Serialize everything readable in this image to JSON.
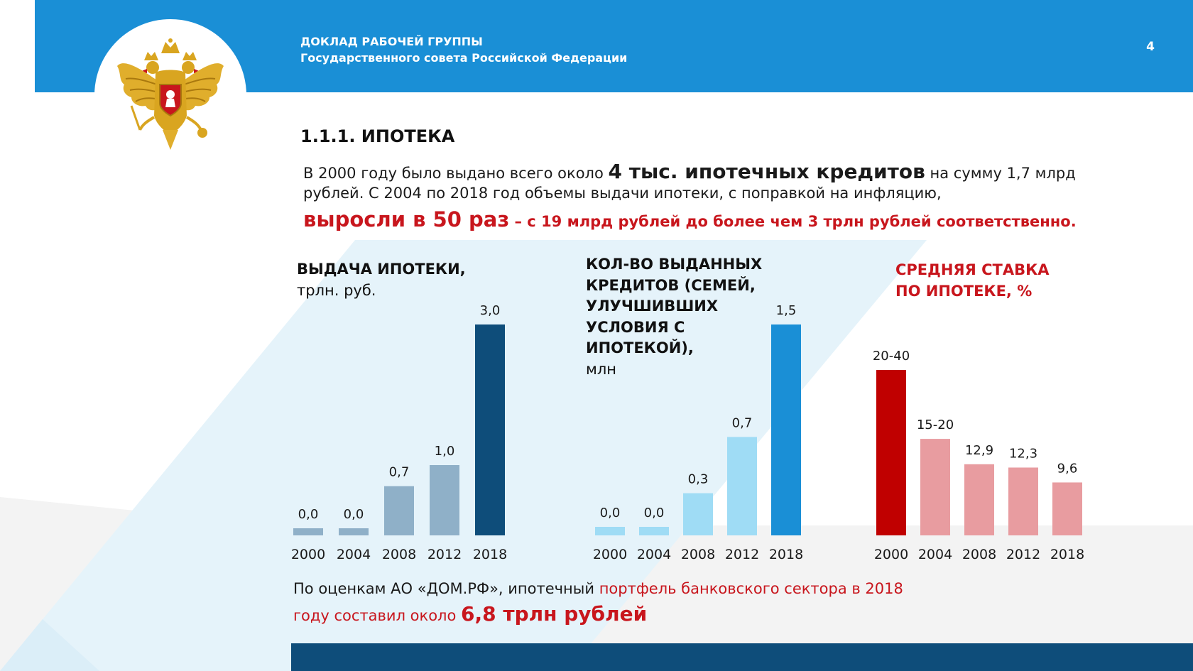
{
  "header": {
    "line1": "ДОКЛАД РАБОЧЕЙ ГРУППЫ",
    "line2": "Государственного совета Российской Федерации",
    "page_number": "4"
  },
  "section_title": "1.1.1. ИПОТЕКА",
  "intro": {
    "l1_a": "В 2000 году было выдано всего около ",
    "l1_b": "4 тыс. ипотечных кредитов",
    "l1_c": " на сумму 1,7 млрд",
    "l2": "рублей. С 2004 по 2018 год объемы выдачи ипотеки, с поправкой на инфляцию,",
    "l3_a": "выросли в 50 раз",
    "l3_b": " – с 19 млрд рублей до более чем 3 трлн рублей соответственно."
  },
  "chart_titles": {
    "c1_a": "ВЫДАЧА ИПОТЕКИ,",
    "c1_b": "трлн. руб.",
    "c2_l1": "КОЛ-ВО ВЫДАННЫХ",
    "c2_l2": "КРЕДИТОВ (СЕМЕЙ,",
    "c2_l3": "УЛУЧШИВШИХ",
    "c2_l4": "УСЛОВИЯ С",
    "c2_l5": "ИПОТЕКОЙ),",
    "c2_l6": "млн",
    "c3_l1": "СРЕДНЯЯ СТАВКА",
    "c3_l2": "ПО ИПОТЕКЕ, %"
  },
  "chart_data": [
    {
      "type": "bar",
      "title": "ВЫДАЧА ИПОТЕКИ, трлн. руб.",
      "categories": [
        "2000",
        "2004",
        "2008",
        "2012",
        "2018"
      ],
      "values": [
        0.0,
        0.0,
        0.7,
        1.0,
        3.0
      ],
      "labels": [
        "0,0",
        "0,0",
        "0,7",
        "1,0",
        "3,0"
      ],
      "colors": [
        "#8fb0c8",
        "#8fb0c8",
        "#8fb0c8",
        "#8fb0c8",
        "#0e4d7a"
      ]
    },
    {
      "type": "bar",
      "title": "КОЛ-ВО ВЫДАННЫХ КРЕДИТОВ (СЕМЕЙ, УЛУЧШИВШИХ УСЛОВИЯ С ИПОТЕКОЙ), млн",
      "categories": [
        "2000",
        "2004",
        "2008",
        "2012",
        "2018"
      ],
      "values": [
        0.0,
        0.0,
        0.3,
        0.7,
        1.5
      ],
      "labels": [
        "0,0",
        "0,0",
        "0,3",
        "0,7",
        "1,5"
      ],
      "colors": [
        "#9fdcf5",
        "#9fdcf5",
        "#9fdcf5",
        "#9fdcf5",
        "#1a8fd6"
      ]
    },
    {
      "type": "bar",
      "title": "СРЕДНЯЯ СТАВКА ПО ИПОТЕКЕ, %",
      "categories": [
        "2000",
        "2004",
        "2008",
        "2012",
        "2018"
      ],
      "values": [
        30.0,
        17.5,
        12.9,
        12.3,
        9.6
      ],
      "labels": [
        "20-40",
        "15-20",
        "12,9",
        "12,3",
        "9,6"
      ],
      "colors": [
        "#c00000",
        "#e89ca0",
        "#e89ca0",
        "#e89ca0",
        "#e89ca0"
      ]
    }
  ],
  "footnote": {
    "l1_a": "По оценкам АО «ДОМ.РФ», ипотечный ",
    "l1_b": "портфель банковского сектора в 2018",
    "l2_a": "году составил около ",
    "l2_b": "6,8 трлн рублей"
  },
  "colors": {
    "header_blue": "#1a8fd6",
    "dark_navy": "#0e4d7a",
    "accent_red": "#c8161d",
    "band_blue": "#e4f3fa",
    "band_grey": "#f2f2f2"
  }
}
